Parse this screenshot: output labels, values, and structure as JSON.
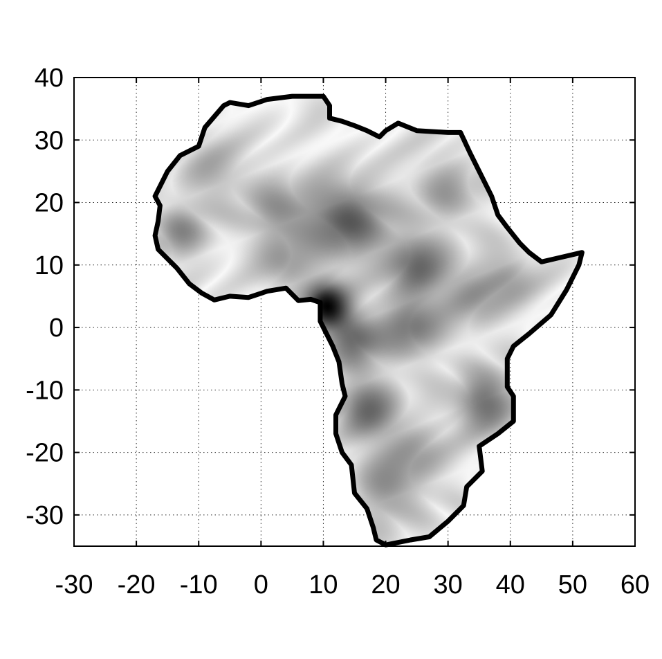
{
  "chart_data": {
    "type": "heatmap",
    "title": "",
    "xlabel": "",
    "ylabel": "",
    "xlim": [
      -30,
      60
    ],
    "ylim": [
      -35,
      40
    ],
    "grid": true,
    "colormap": [
      "#ffffff",
      "#000000"
    ],
    "x_ticks": [
      "-30",
      "-20",
      "-10",
      "0",
      "10",
      "20",
      "30",
      "40",
      "50",
      "60"
    ],
    "y_ticks": [
      "40",
      "30",
      "20",
      "10",
      "0",
      "-10",
      "-20",
      "-30"
    ],
    "coastline": [
      [
        -17,
        21
      ],
      [
        -15,
        25
      ],
      [
        -13,
        27.5
      ],
      [
        -10,
        29
      ],
      [
        -9,
        32
      ],
      [
        -6,
        35.5
      ],
      [
        -5,
        36
      ],
      [
        -2,
        35.5
      ],
      [
        1,
        36.5
      ],
      [
        5,
        37
      ],
      [
        10,
        37
      ],
      [
        11,
        35.5
      ],
      [
        11,
        33.5
      ],
      [
        13,
        33
      ],
      [
        15,
        32.3
      ],
      [
        17,
        31.5
      ],
      [
        19,
        30.5
      ],
      [
        20,
        31.5
      ],
      [
        22,
        32.7
      ],
      [
        25,
        31.5
      ],
      [
        30,
        31.2
      ],
      [
        32,
        31.2
      ],
      [
        33.5,
        28
      ],
      [
        35,
        25
      ],
      [
        37,
        21
      ],
      [
        38,
        18
      ],
      [
        39.5,
        16
      ],
      [
        41.5,
        13.5
      ],
      [
        43,
        12
      ],
      [
        45,
        10.5
      ],
      [
        48,
        11.2
      ],
      [
        51.5,
        12
      ],
      [
        51,
        10
      ],
      [
        49,
        6
      ],
      [
        46.5,
        2
      ],
      [
        43,
        -1
      ],
      [
        40.5,
        -3
      ],
      [
        39.5,
        -5
      ],
      [
        39.5,
        -9.5
      ],
      [
        40.5,
        -11
      ],
      [
        40.5,
        -15
      ],
      [
        38,
        -17
      ],
      [
        35,
        -19
      ],
      [
        35.5,
        -23
      ],
      [
        33,
        -25.5
      ],
      [
        32.5,
        -28.5
      ],
      [
        30,
        -31
      ],
      [
        27,
        -33.5
      ],
      [
        24,
        -34
      ],
      [
        20,
        -34.8
      ],
      [
        18.5,
        -34
      ],
      [
        18,
        -32
      ],
      [
        17,
        -29
      ],
      [
        15,
        -26.5
      ],
      [
        14.5,
        -22
      ],
      [
        13,
        -20
      ],
      [
        12,
        -17
      ],
      [
        12,
        -14
      ],
      [
        13.5,
        -11
      ],
      [
        13,
        -9
      ],
      [
        12.5,
        -5.5
      ],
      [
        11.5,
        -3
      ],
      [
        9.5,
        1
      ],
      [
        9.5,
        4
      ],
      [
        8,
        4.5
      ],
      [
        6,
        4.3
      ],
      [
        4,
        6.3
      ],
      [
        1,
        5.8
      ],
      [
        -2,
        4.8
      ],
      [
        -5,
        5
      ],
      [
        -7.5,
        4.4
      ],
      [
        -9.5,
        5.5
      ],
      [
        -11.5,
        7
      ],
      [
        -13.5,
        9.5
      ],
      [
        -15,
        11
      ],
      [
        -16.5,
        12.5
      ],
      [
        -17,
        14.7
      ],
      [
        -16.5,
        17
      ],
      [
        -16.2,
        19.5
      ],
      [
        -17,
        21
      ]
    ],
    "blobs": [
      {
        "x": 10.5,
        "y": 3.5,
        "amp": 1.0,
        "sigma": 2.6
      },
      {
        "x": 14,
        "y": 17,
        "amp": 0.62,
        "sigma": 4.5
      },
      {
        "x": 3,
        "y": 18.5,
        "amp": 0.35,
        "sigma": 4
      },
      {
        "x": -13,
        "y": 15,
        "amp": 0.4,
        "sigma": 3
      },
      {
        "x": 25,
        "y": 10,
        "amp": 0.55,
        "sigma": 3.5
      },
      {
        "x": 24,
        "y": 0,
        "amp": 0.5,
        "sigma": 3.5
      },
      {
        "x": 15,
        "y": -2,
        "amp": 0.55,
        "sigma": 3
      },
      {
        "x": 17,
        "y": -13,
        "amp": 0.55,
        "sigma": 3.5
      },
      {
        "x": 36,
        "y": -12,
        "amp": 0.55,
        "sigma": 3.5
      },
      {
        "x": 34,
        "y": 5,
        "amp": 0.35,
        "sigma": 3.5
      },
      {
        "x": 4,
        "y": 10,
        "amp": 0.3,
        "sigma": 3
      },
      {
        "x": 20,
        "y": -26,
        "amp": 0.35,
        "sigma": 4
      },
      {
        "x": 30,
        "y": 22,
        "amp": 0.3,
        "sigma": 4
      },
      {
        "x": 25,
        "y": -20,
        "amp": 0.3,
        "sigma": 3.5
      },
      {
        "x": 40,
        "y": 8,
        "amp": 0.3,
        "sigma": 3
      },
      {
        "x": -8,
        "y": 25,
        "amp": 0.25,
        "sigma": 4
      }
    ]
  }
}
